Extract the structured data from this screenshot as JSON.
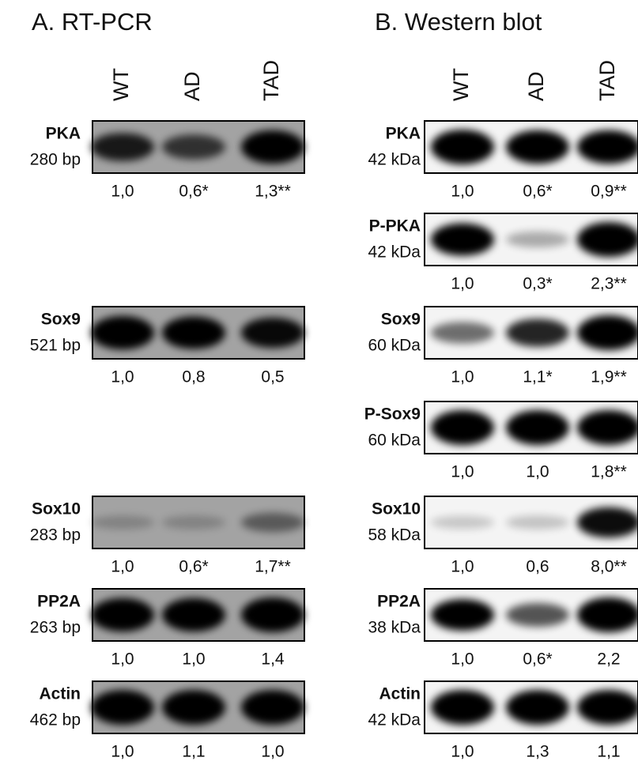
{
  "panels": [
    {
      "title": "A. RT-PCR",
      "lanes": [
        "WT",
        "AD",
        "TAD"
      ],
      "rows": [
        {
          "name": "PKA",
          "size": "280 bp",
          "values": [
            "1,0",
            "0,6*",
            "1,3**"
          ]
        },
        {
          "name": "Sox9",
          "size": "521 bp",
          "values": [
            "1,0",
            "0,8",
            "0,5"
          ]
        },
        {
          "name": "Sox10",
          "size": "283 bp",
          "values": [
            "1,0",
            "0,6*",
            "1,7**"
          ]
        },
        {
          "name": "PP2A",
          "size": "263 bp",
          "values": [
            "1,0",
            "1,0",
            "1,4"
          ]
        },
        {
          "name": "Actin",
          "size": "462 bp",
          "values": [
            "1,0",
            "1,1",
            "1,0"
          ]
        }
      ]
    },
    {
      "title": "B. Western blot",
      "lanes": [
        "WT",
        "AD",
        "TAD"
      ],
      "rows": [
        {
          "name": "PKA",
          "size": "42 kDa",
          "values": [
            "1,0",
            "0,6*",
            "0,9**"
          ]
        },
        {
          "name": "P-PKA",
          "size": "42 kDa",
          "values": [
            "1,0",
            "0,3*",
            "2,3**"
          ]
        },
        {
          "name": "Sox9",
          "size": "60 kDa",
          "values": [
            "1,0",
            "1,1*",
            "1,9**"
          ]
        },
        {
          "name": "P-Sox9",
          "size": "60 kDa",
          "values": [
            "1,0",
            "1,0",
            "1,8**"
          ]
        },
        {
          "name": "Sox10",
          "size": "58 kDa",
          "values": [
            "1,0",
            "0,6",
            "8,0**"
          ]
        },
        {
          "name": "PP2A",
          "size": "38 kDa",
          "values": [
            "1,0",
            "0,6*",
            "2,2"
          ]
        },
        {
          "name": "Actin",
          "size": "42 kDa",
          "values": [
            "1,0",
            "1,3",
            "1,1"
          ]
        }
      ]
    }
  ]
}
